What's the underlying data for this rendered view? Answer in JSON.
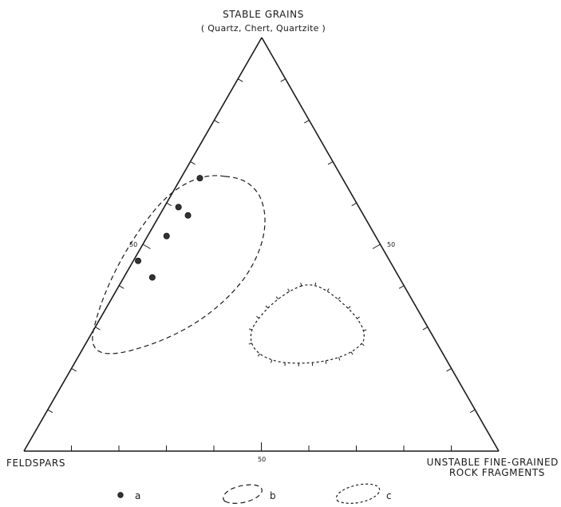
{
  "labels": {
    "top_title": "STABLE GRAINS",
    "top_subtitle": "( Quartz, Chert, Quartzite )",
    "left_corner": "FELDSPARS",
    "right_corner_line1": "UNSTABLE  FINE-GRAINED",
    "right_corner_line2": "ROCK   FRAGMENTS",
    "mid_left": "50",
    "mid_right": "50",
    "mid_bottom": "50"
  },
  "legend": [
    {
      "symbol": "dot",
      "label": "a"
    },
    {
      "symbol": "dashed-loop",
      "label": "b"
    },
    {
      "symbol": "dotted-loop",
      "label": "c"
    }
  ],
  "chart_data": {
    "type": "ternary",
    "apexes": [
      "STABLE GRAINS",
      "FELDSPARS",
      "UNSTABLE FINE-GRAINED ROCK FRAGMENTS"
    ],
    "points_a": [
      {
        "stable": 66,
        "feldspar": 30,
        "rock_fragments": 4
      },
      {
        "stable": 59,
        "feldspar": 38,
        "rock_fragments": 3
      },
      {
        "stable": 57,
        "feldspar": 37,
        "rock_fragments": 6
      },
      {
        "stable": 52,
        "feldspar": 44,
        "rock_fragments": 4
      },
      {
        "stable": 46,
        "feldspar": 53,
        "rock_fragments": 1
      },
      {
        "stable": 42,
        "feldspar": 52,
        "rock_fragments": 6
      }
    ]
  }
}
